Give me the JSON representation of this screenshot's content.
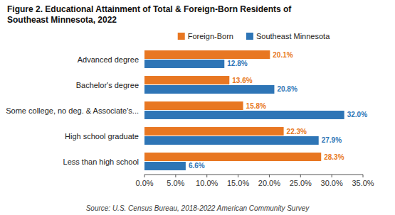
{
  "chart_data": {
    "type": "bar",
    "orientation": "horizontal",
    "title": "Figure 2. Educational Attainment of Total & Foreign-Born Residents of",
    "subtitle": "Southeast Minnesota, 2022",
    "annotations": [
      "Source: U.S. Census Bureau, 2018-2022 American Community Survey"
    ],
    "categories": [
      "Advanced degree",
      "Bachelor's degree",
      "Some college, no deg. & Associate's...",
      "High school graduate",
      "Less than high school"
    ],
    "series": [
      {
        "name": "Foreign-Born",
        "color": "#E87722",
        "values": [
          20.1,
          13.6,
          15.8,
          22.3,
          28.3
        ],
        "value_labels": [
          "20.1%",
          "13.6%",
          "15.8%",
          "22.3%",
          "28.3%"
        ]
      },
      {
        "name": "Southeast Minnesota",
        "color": "#2E75B6",
        "values": [
          12.8,
          20.8,
          32.0,
          27.9,
          6.6
        ],
        "value_labels": [
          "12.8%",
          "20.8%",
          "32.0%",
          "27.9%",
          "6.6%"
        ]
      }
    ],
    "xlim": [
      0,
      35
    ],
    "xticks": [
      {
        "value": 0,
        "label": "0.0%"
      },
      {
        "value": 5,
        "label": "5.0%"
      },
      {
        "value": 10,
        "label": "10.0%"
      },
      {
        "value": 15,
        "label": "15.0%"
      },
      {
        "value": 20,
        "label": "20.0%"
      },
      {
        "value": 25,
        "label": "25.0%"
      },
      {
        "value": 30,
        "label": "30.0%"
      },
      {
        "value": 35,
        "label": "35.0%"
      }
    ],
    "data_labels": true,
    "legend": "top",
    "grid": false
  }
}
